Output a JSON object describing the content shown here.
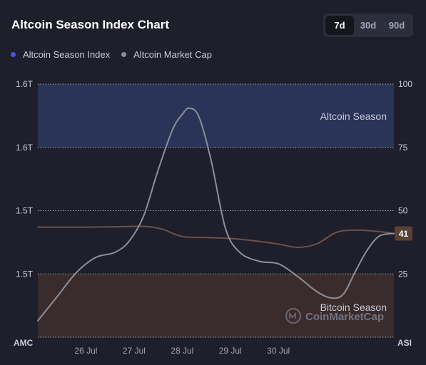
{
  "header": {
    "title": "Altcoin Season Index Chart"
  },
  "range_buttons": [
    {
      "label": "7d",
      "active": true
    },
    {
      "label": "30d",
      "active": false
    },
    {
      "label": "90d",
      "active": false
    }
  ],
  "legend": [
    {
      "label": "Altcoin Season Index",
      "color": "#3e5be8"
    },
    {
      "label": "Altcoin Market Cap",
      "color": "#8a8d99"
    }
  ],
  "watermark": {
    "text": "CoinMarketCap"
  },
  "chart_data": {
    "type": "line",
    "x_ticks": [
      "26 Jul",
      "27 Jul",
      "28 Jul",
      "29 Jul",
      "30 Jul"
    ],
    "x_range": [
      25.0,
      32.4
    ],
    "left_axis": {
      "label": "AMC",
      "ticks": [
        "1.6T",
        "1.6T",
        "1.5T",
        "1.5T"
      ],
      "tick_positions": [
        100,
        75,
        50,
        25
      ]
    },
    "right_axis": {
      "label": "ASI",
      "ylim": [
        0,
        100
      ],
      "ticks": [
        100,
        75,
        50,
        25
      ]
    },
    "zones": [
      {
        "label": "Altcoin Season",
        "from": 75,
        "to": 100,
        "color": "#2a3358"
      },
      {
        "label": "Bitcoin Season",
        "from": 0,
        "to": 25,
        "color": "#3a2c2d"
      }
    ],
    "series": [
      {
        "name": "Altcoin Season Index",
        "axis": "right",
        "color": "#6e5147",
        "points": [
          [
            25.0,
            43.5
          ],
          [
            25.5,
            43.5
          ],
          [
            26.0,
            43.5
          ],
          [
            26.5,
            43.6
          ],
          [
            27.0,
            43.8
          ],
          [
            27.3,
            43.7
          ],
          [
            27.6,
            42.6
          ],
          [
            28.0,
            39.8
          ],
          [
            28.5,
            39.4
          ],
          [
            29.0,
            39.0
          ],
          [
            29.5,
            38.1
          ],
          [
            30.0,
            36.8
          ],
          [
            30.4,
            35.5
          ],
          [
            30.8,
            36.9
          ],
          [
            31.2,
            41.4
          ],
          [
            31.6,
            42.3
          ],
          [
            32.0,
            41.9
          ],
          [
            32.4,
            41.0
          ]
        ],
        "last_value": 41
      },
      {
        "name": "Altcoin Market Cap",
        "axis": "left",
        "color": "#8d8f99",
        "points": [
          [
            25.0,
            6.5
          ],
          [
            25.4,
            16.0
          ],
          [
            25.8,
            25.5
          ],
          [
            26.2,
            31.5
          ],
          [
            26.6,
            33.5
          ],
          [
            26.9,
            38.0
          ],
          [
            27.2,
            48.0
          ],
          [
            27.5,
            66.0
          ],
          [
            27.8,
            82.0
          ],
          [
            28.0,
            88.0
          ],
          [
            28.15,
            90.5
          ],
          [
            28.35,
            87.0
          ],
          [
            28.6,
            70.0
          ],
          [
            28.9,
            43.0
          ],
          [
            29.2,
            33.5
          ],
          [
            29.6,
            30.0
          ],
          [
            30.0,
            29.0
          ],
          [
            30.4,
            24.0
          ],
          [
            30.8,
            18.0
          ],
          [
            31.1,
            15.5
          ],
          [
            31.35,
            17.0
          ],
          [
            31.6,
            26.0
          ],
          [
            31.85,
            34.5
          ],
          [
            32.1,
            40.0
          ],
          [
            32.4,
            41.0
          ]
        ]
      }
    ]
  }
}
